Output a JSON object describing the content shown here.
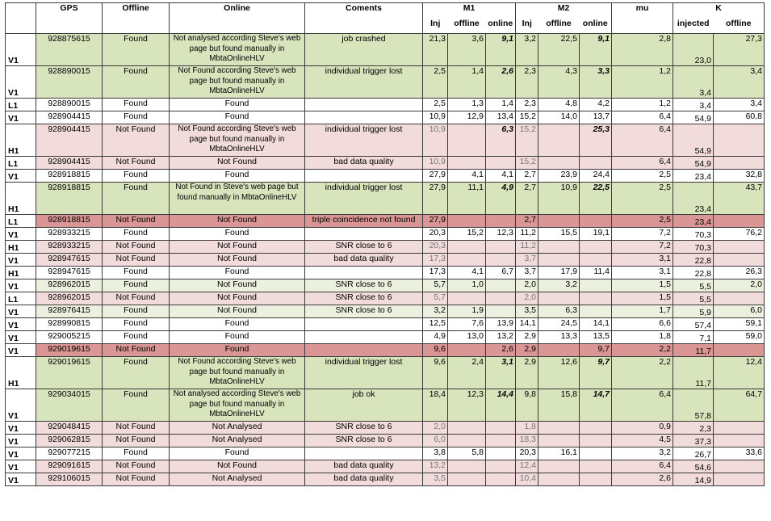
{
  "header": {
    "gps": "GPS",
    "offline": "Offline",
    "online": "Online",
    "coments": "Coments",
    "m1": "M1",
    "m2": "M2",
    "mu": "mu",
    "k": "K",
    "inj": "Inj",
    "sub_offline": "offline",
    "sub_online": "online",
    "injected": "injected"
  },
  "colors": {
    "green": "#d8e4bc",
    "light_green": "#ebf1de",
    "pink": "#f2dcdb",
    "red": "#da9694",
    "white": "#ffffff"
  },
  "rows": [
    {
      "det": "V1",
      "gps": "928875615",
      "off": "Found",
      "on": "Not analysed according Steve's web page  but found manually in MbtaOnlineHLV",
      "com": "job crashed",
      "m1inj": "21,3",
      "m1off": "3,6",
      "m1on": "9,1",
      "m2inj": "3,2",
      "m2off": "22,5",
      "m2on": "9,1",
      "mu": "2,8",
      "kinj": "23,0",
      "koff": "27,3",
      "bold": [
        "m1on",
        "m2on"
      ],
      "color": "green",
      "tall": true
    },
    {
      "det": "V1",
      "gps": "928890015",
      "off": "Found",
      "on": "Not Found according Steve's web page but found manually in MbtaOnlineHLV",
      "com": "individual trigger lost",
      "m1inj": "2,5",
      "m1off": "1,4",
      "m1on": "2,6",
      "m2inj": "2,3",
      "m2off": "4,3",
      "m2on": "3,3",
      "mu": "1,2",
      "kinj": "3,4",
      "koff": "3,4",
      "bold": [
        "m1on",
        "m2on"
      ],
      "color": "green",
      "tall": true
    },
    {
      "det": "L1",
      "gps": "928890015",
      "off": "Found",
      "on": "Found",
      "com": "",
      "m1inj": "2,5",
      "m1off": "1,3",
      "m1on": "1,4",
      "m2inj": "2,3",
      "m2off": "4,8",
      "m2on": "4,2",
      "mu": "1,2",
      "kinj": "3,4",
      "koff": "3,4",
      "color": "white"
    },
    {
      "det": "V1",
      "gps": "928904415",
      "off": "Found",
      "on": "Found",
      "com": "",
      "m1inj": "10,9",
      "m1off": "12,9",
      "m1on": "13,4",
      "m2inj": "15,2",
      "m2off": "14,0",
      "m2on": "13,7",
      "mu": "6,4",
      "kinj": "54,9",
      "koff": "60,8",
      "color": "white"
    },
    {
      "det": "H1",
      "gps": "928904415",
      "off": "Not Found",
      "on": "Not Found according Steve's web page  but found manually in MbtaOnlineHLV",
      "com": "individual trigger lost",
      "m1inj": "10,9",
      "m1off": "",
      "m1on": "6,3",
      "m2inj": "15,2",
      "m2off": "",
      "m2on": "25,3",
      "mu": "6,4",
      "kinj": "54,9",
      "koff": "",
      "bold": [
        "m1on",
        "m2on"
      ],
      "color": "pink",
      "tall": true
    },
    {
      "det": "L1",
      "gps": "928904415",
      "off": "Not Found",
      "on": "Not Found",
      "com": "bad data quality",
      "m1inj": "10,9",
      "m1off": "",
      "m1on": "",
      "m2inj": "15,2",
      "m2off": "",
      "m2on": "",
      "mu": "6,4",
      "kinj": "54,9",
      "koff": "",
      "color": "pink"
    },
    {
      "det": "V1",
      "gps": "928918815",
      "off": "Found",
      "on": "Found",
      "com": "",
      "m1inj": "27,9",
      "m1off": "4,1",
      "m1on": "4,1",
      "m2inj": "2,7",
      "m2off": "23,9",
      "m2on": "24,4",
      "mu": "2,5",
      "kinj": "23,4",
      "koff": "32,8",
      "color": "white"
    },
    {
      "det": "H1",
      "gps": "928918815",
      "off": "Found",
      "on": "Not Found in Steve's web page  but found manually in MbtaOnlineHLV",
      "com": "individual trigger lost",
      "m1inj": "27,9",
      "m1off": "11,1",
      "m1on": "4,9",
      "m2inj": "2,7",
      "m2off": "10,9",
      "m2on": "22,5",
      "mu": "2,5",
      "kinj": "23,4",
      "koff": "43,7",
      "bold": [
        "m1on",
        "m2on"
      ],
      "color": "green",
      "tall": true
    },
    {
      "det": "L1",
      "gps": "928918815",
      "off": "Not Found",
      "on": "Not Found",
      "com": "triple coincidence not found",
      "m1inj": "27,9",
      "m1off": "",
      "m1on": "",
      "m2inj": "2,7",
      "m2off": "",
      "m2on": "",
      "mu": "2,5",
      "kinj": "23,4",
      "koff": "",
      "color": "red"
    },
    {
      "det": "V1",
      "gps": "928933215",
      "off": "Found",
      "on": "Found",
      "com": "",
      "m1inj": "20,3",
      "m1off": "15,2",
      "m1on": "12,3",
      "m2inj": "11,2",
      "m2off": "15,5",
      "m2on": "19,1",
      "mu": "7,2",
      "kinj": "70,3",
      "koff": "76,2",
      "color": "white"
    },
    {
      "det": "H1",
      "gps": "928933215",
      "off": "Not Found",
      "on": "Not Found",
      "com": "SNR close to 6",
      "m1inj": "20,3",
      "m1off": "",
      "m1on": "",
      "m2inj": "11,2",
      "m2off": "",
      "m2on": "",
      "mu": "7,2",
      "kinj": "70,3",
      "koff": "",
      "color": "pink"
    },
    {
      "det": "V1",
      "gps": "928947615",
      "off": "Not Found",
      "on": "Not Found",
      "com": "bad data quality",
      "m1inj": "17,3",
      "m1off": "",
      "m1on": "",
      "m2inj": "3,7",
      "m2off": "",
      "m2on": "",
      "mu": "3,1",
      "kinj": "22,8",
      "koff": "",
      "color": "pink"
    },
    {
      "det": "H1",
      "gps": "928947615",
      "off": "Found",
      "on": "Found",
      "com": "",
      "m1inj": "17,3",
      "m1off": "4,1",
      "m1on": "6,7",
      "m2inj": "3,7",
      "m2off": "17,9",
      "m2on": "11,4",
      "mu": "3,1",
      "kinj": "22,8",
      "koff": "26,3",
      "color": "white"
    },
    {
      "det": "V1",
      "gps": "928962015",
      "off": "Found",
      "on": "Not Found",
      "com": "SNR close to 6",
      "m1inj": "5,7",
      "m1off": "1,0",
      "m1on": "",
      "m2inj": "2,0",
      "m2off": "3,2",
      "m2on": "",
      "mu": "1,5",
      "kinj": "5,5",
      "koff": "2,0",
      "color": "light_green"
    },
    {
      "det": "L1",
      "gps": "928962015",
      "off": "Not Found",
      "on": "Not Found",
      "com": "SNR close to 6",
      "m1inj": "5,7",
      "m1off": "",
      "m1on": "",
      "m2inj": "2,0",
      "m2off": "",
      "m2on": "",
      "mu": "1,5",
      "kinj": "5,5",
      "koff": "",
      "color": "pink"
    },
    {
      "det": "V1",
      "gps": "928976415",
      "off": "Found",
      "on": "Not Found",
      "com": "SNR close to 6",
      "m1inj": "3,2",
      "m1off": "1,9",
      "m1on": "",
      "m2inj": "3,5",
      "m2off": "6,3",
      "m2on": "",
      "mu": "1,7",
      "kinj": "5,9",
      "koff": "6,0",
      "color": "light_green"
    },
    {
      "det": "V1",
      "gps": "928990815",
      "off": "Found",
      "on": "Found",
      "com": "",
      "m1inj": "12,5",
      "m1off": "7,6",
      "m1on": "13,9",
      "m2inj": "14,1",
      "m2off": "24,5",
      "m2on": "14,1",
      "mu": "6,6",
      "kinj": "57,4",
      "koff": "59,1",
      "color": "white"
    },
    {
      "det": "V1",
      "gps": "929005215",
      "off": "Found",
      "on": "Found",
      "com": "",
      "m1inj": "4,9",
      "m1off": "13,0",
      "m1on": "13,2",
      "m2inj": "2,9",
      "m2off": "13,3",
      "m2on": "13,5",
      "mu": "1,8",
      "kinj": "7,1",
      "koff": "59,0",
      "color": "white"
    },
    {
      "det": "V1",
      "gps": "929019615",
      "off": "Not Found",
      "on": "Found",
      "com": "",
      "m1inj": "9,6",
      "m1off": "",
      "m1on": "2,6",
      "m2inj": "2,9",
      "m2off": "",
      "m2on": "9,7",
      "mu": "2,2",
      "kinj": "11,7",
      "koff": "",
      "color": "red"
    },
    {
      "det": "H1",
      "gps": "929019615",
      "off": "Found",
      "on": "Not Found according Steve's web page  but found manually in MbtaOnlineHLV",
      "com": "individual trigger lost",
      "m1inj": "9,6",
      "m1off": "2,4",
      "m1on": "3,1",
      "m2inj": "2,9",
      "m2off": "12,6",
      "m2on": "9,7",
      "mu": "2,2",
      "kinj": "11,7",
      "koff": "12,4",
      "bold": [
        "m1on",
        "m2on"
      ],
      "color": "green",
      "tall": true
    },
    {
      "det": "V1",
      "gps": "929034015",
      "off": "Found",
      "on": "Not analysed  according Steve's web page but found manually in MbtaOnlineHLV",
      "com": "job ok",
      "m1inj": "18,4",
      "m1off": "12,3",
      "m1on": "14,4",
      "m2inj": "9,8",
      "m2off": "15,8",
      "m2on": "14,7",
      "mu": "6,4",
      "kinj": "57,8",
      "koff": "64,7",
      "boldb": [
        "m1on",
        "m2on"
      ],
      "color": "green",
      "tall": true
    },
    {
      "det": "V1",
      "gps": "929048415",
      "off": "Not Found",
      "on": "Not Analysed",
      "com": "SNR close to 6",
      "m1inj": "2,0",
      "m1off": "",
      "m1on": "",
      "m2inj": "1,8",
      "m2off": "",
      "m2on": "",
      "mu": "0,9",
      "kinj": "2,3",
      "koff": "",
      "color": "pink"
    },
    {
      "det": "V1",
      "gps": "929062815",
      "off": "Not Found",
      "on": "Not Analysed",
      "com": "SNR close to 6",
      "m1inj": "6,0",
      "m1off": "",
      "m1on": "",
      "m2inj": "18,3",
      "m2off": "",
      "m2on": "",
      "mu": "4,5",
      "kinj": "37,3",
      "koff": "",
      "color": "pink"
    },
    {
      "det": "V1",
      "gps": "929077215",
      "off": "Found",
      "on": "Found",
      "com": "",
      "m1inj": "3,8",
      "m1off": "5,8",
      "m1on": "",
      "m2inj": "20,3",
      "m2off": "16,1",
      "m2on": "",
      "mu": "3,2",
      "kinj": "26,7",
      "koff": "33,6",
      "color": "white"
    },
    {
      "det": "V1",
      "gps": "929091615",
      "off": "Not Found",
      "on": "Not Found",
      "com": "bad data quality",
      "m1inj": "13,2",
      "m1off": "",
      "m1on": "",
      "m2inj": "12,4",
      "m2off": "",
      "m2on": "",
      "mu": "6,4",
      "kinj": "54,6",
      "koff": "",
      "color": "pink"
    },
    {
      "det": "V1",
      "gps": "929106015",
      "off": "Not Found",
      "on": "Not Analysed",
      "com": "bad data quality",
      "m1inj": "3,5",
      "m1off": "",
      "m1on": "",
      "m2inj": "10,4",
      "m2off": "",
      "m2on": "",
      "mu": "2,6",
      "kinj": "14,9",
      "koff": "",
      "color": "pink"
    }
  ]
}
